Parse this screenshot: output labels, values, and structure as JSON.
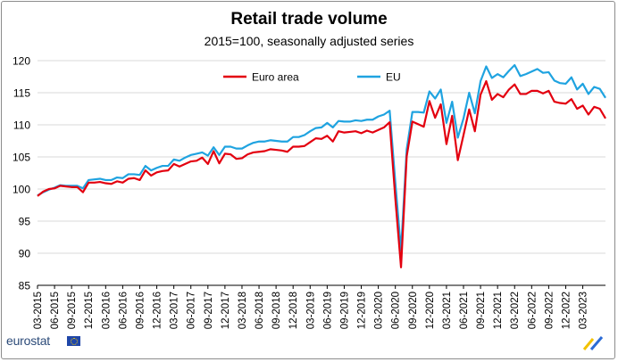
{
  "chart_data": {
    "type": "line",
    "title": "Retail trade volume",
    "subtitle": "2015=100, seasonally adjusted series",
    "xlabel": "",
    "ylabel": "",
    "ylim": [
      85,
      120
    ],
    "yticks": [
      85,
      90,
      95,
      100,
      105,
      110,
      115,
      120
    ],
    "grid": "horizontal",
    "legend_position": "top-center",
    "x_start": "03-2015",
    "x_tick_labels": [
      "03-2015",
      "06-2015",
      "09-2015",
      "12-2015",
      "03-2016",
      "06-2016",
      "09-2016",
      "12-2016",
      "03-2017",
      "06-2017",
      "09-2017",
      "12-2017",
      "03-2018",
      "06-2018",
      "09-2018",
      "12-2018",
      "03-2019",
      "06-2019",
      "09-2019",
      "12-2019",
      "03-2020",
      "06-2020",
      "09-2020",
      "12-2020",
      "03-2021",
      "06-2021",
      "09-2021",
      "12-2021",
      "03-2022",
      "06-2022",
      "09-2022",
      "12-2022",
      "03-2023"
    ],
    "series": [
      {
        "name": "Euro area",
        "color": "#e3000f",
        "values": [
          98.9,
          99.6,
          100.0,
          100.1,
          100.5,
          100.4,
          100.3,
          100.3,
          99.5,
          101.0,
          101.0,
          101.1,
          100.9,
          100.8,
          101.2,
          101.0,
          101.6,
          101.7,
          101.4,
          102.9,
          102.1,
          102.6,
          102.8,
          102.9,
          103.9,
          103.5,
          103.9,
          104.3,
          104.4,
          104.9,
          103.9,
          105.9,
          104.0,
          105.5,
          105.4,
          104.7,
          104.8,
          105.4,
          105.7,
          105.8,
          105.9,
          106.2,
          106.1,
          106.0,
          105.8,
          106.6,
          106.6,
          106.7,
          107.3,
          107.9,
          107.8,
          108.3,
          107.4,
          109.0,
          108.8,
          108.9,
          109.0,
          108.7,
          109.1,
          108.8,
          109.2,
          109.6,
          110.4,
          98.5,
          87.8,
          105.1,
          110.5,
          110.1,
          109.7,
          113.7,
          111.1,
          113.2,
          107.0,
          111.4,
          104.5,
          108.4,
          112.4,
          109.0,
          114.7,
          116.8,
          113.9,
          114.8,
          114.3,
          115.5,
          116.3,
          114.8,
          114.8,
          115.3,
          115.3,
          114.9,
          115.3,
          113.6,
          113.4,
          113.3,
          114.0,
          112.5,
          113.0,
          111.6,
          112.8,
          112.5,
          111.0
        ]
      },
      {
        "name": "EU",
        "color": "#1fa3e0",
        "values": [
          99.0,
          99.5,
          99.9,
          100.2,
          100.6,
          100.5,
          100.5,
          100.5,
          100.1,
          101.4,
          101.5,
          101.6,
          101.4,
          101.4,
          101.8,
          101.7,
          102.3,
          102.3,
          102.2,
          103.6,
          102.9,
          103.3,
          103.6,
          103.6,
          104.6,
          104.4,
          104.9,
          105.3,
          105.5,
          105.7,
          105.2,
          106.5,
          105.3,
          106.6,
          106.6,
          106.3,
          106.3,
          106.8,
          107.2,
          107.4,
          107.4,
          107.6,
          107.5,
          107.4,
          107.4,
          108.1,
          108.1,
          108.4,
          109.0,
          109.5,
          109.6,
          110.3,
          109.6,
          110.6,
          110.5,
          110.5,
          110.7,
          110.6,
          110.8,
          110.8,
          111.3,
          111.6,
          112.2,
          101.0,
          90.4,
          106.2,
          112.0,
          112.0,
          111.9,
          115.2,
          114.1,
          115.5,
          110.3,
          113.6,
          108.0,
          111.0,
          115.0,
          111.8,
          116.8,
          119.1,
          117.3,
          117.9,
          117.4,
          118.4,
          119.3,
          117.6,
          117.9,
          118.3,
          118.7,
          118.1,
          118.2,
          116.9,
          116.5,
          116.4,
          117.4,
          115.5,
          116.4,
          114.8,
          115.9,
          115.6,
          114.2
        ]
      }
    ]
  },
  "footer": {
    "logo_text": "eurostat",
    "flag_icon": "eu-flag-icon",
    "corner_icon": "eurostat-corner-icon"
  }
}
